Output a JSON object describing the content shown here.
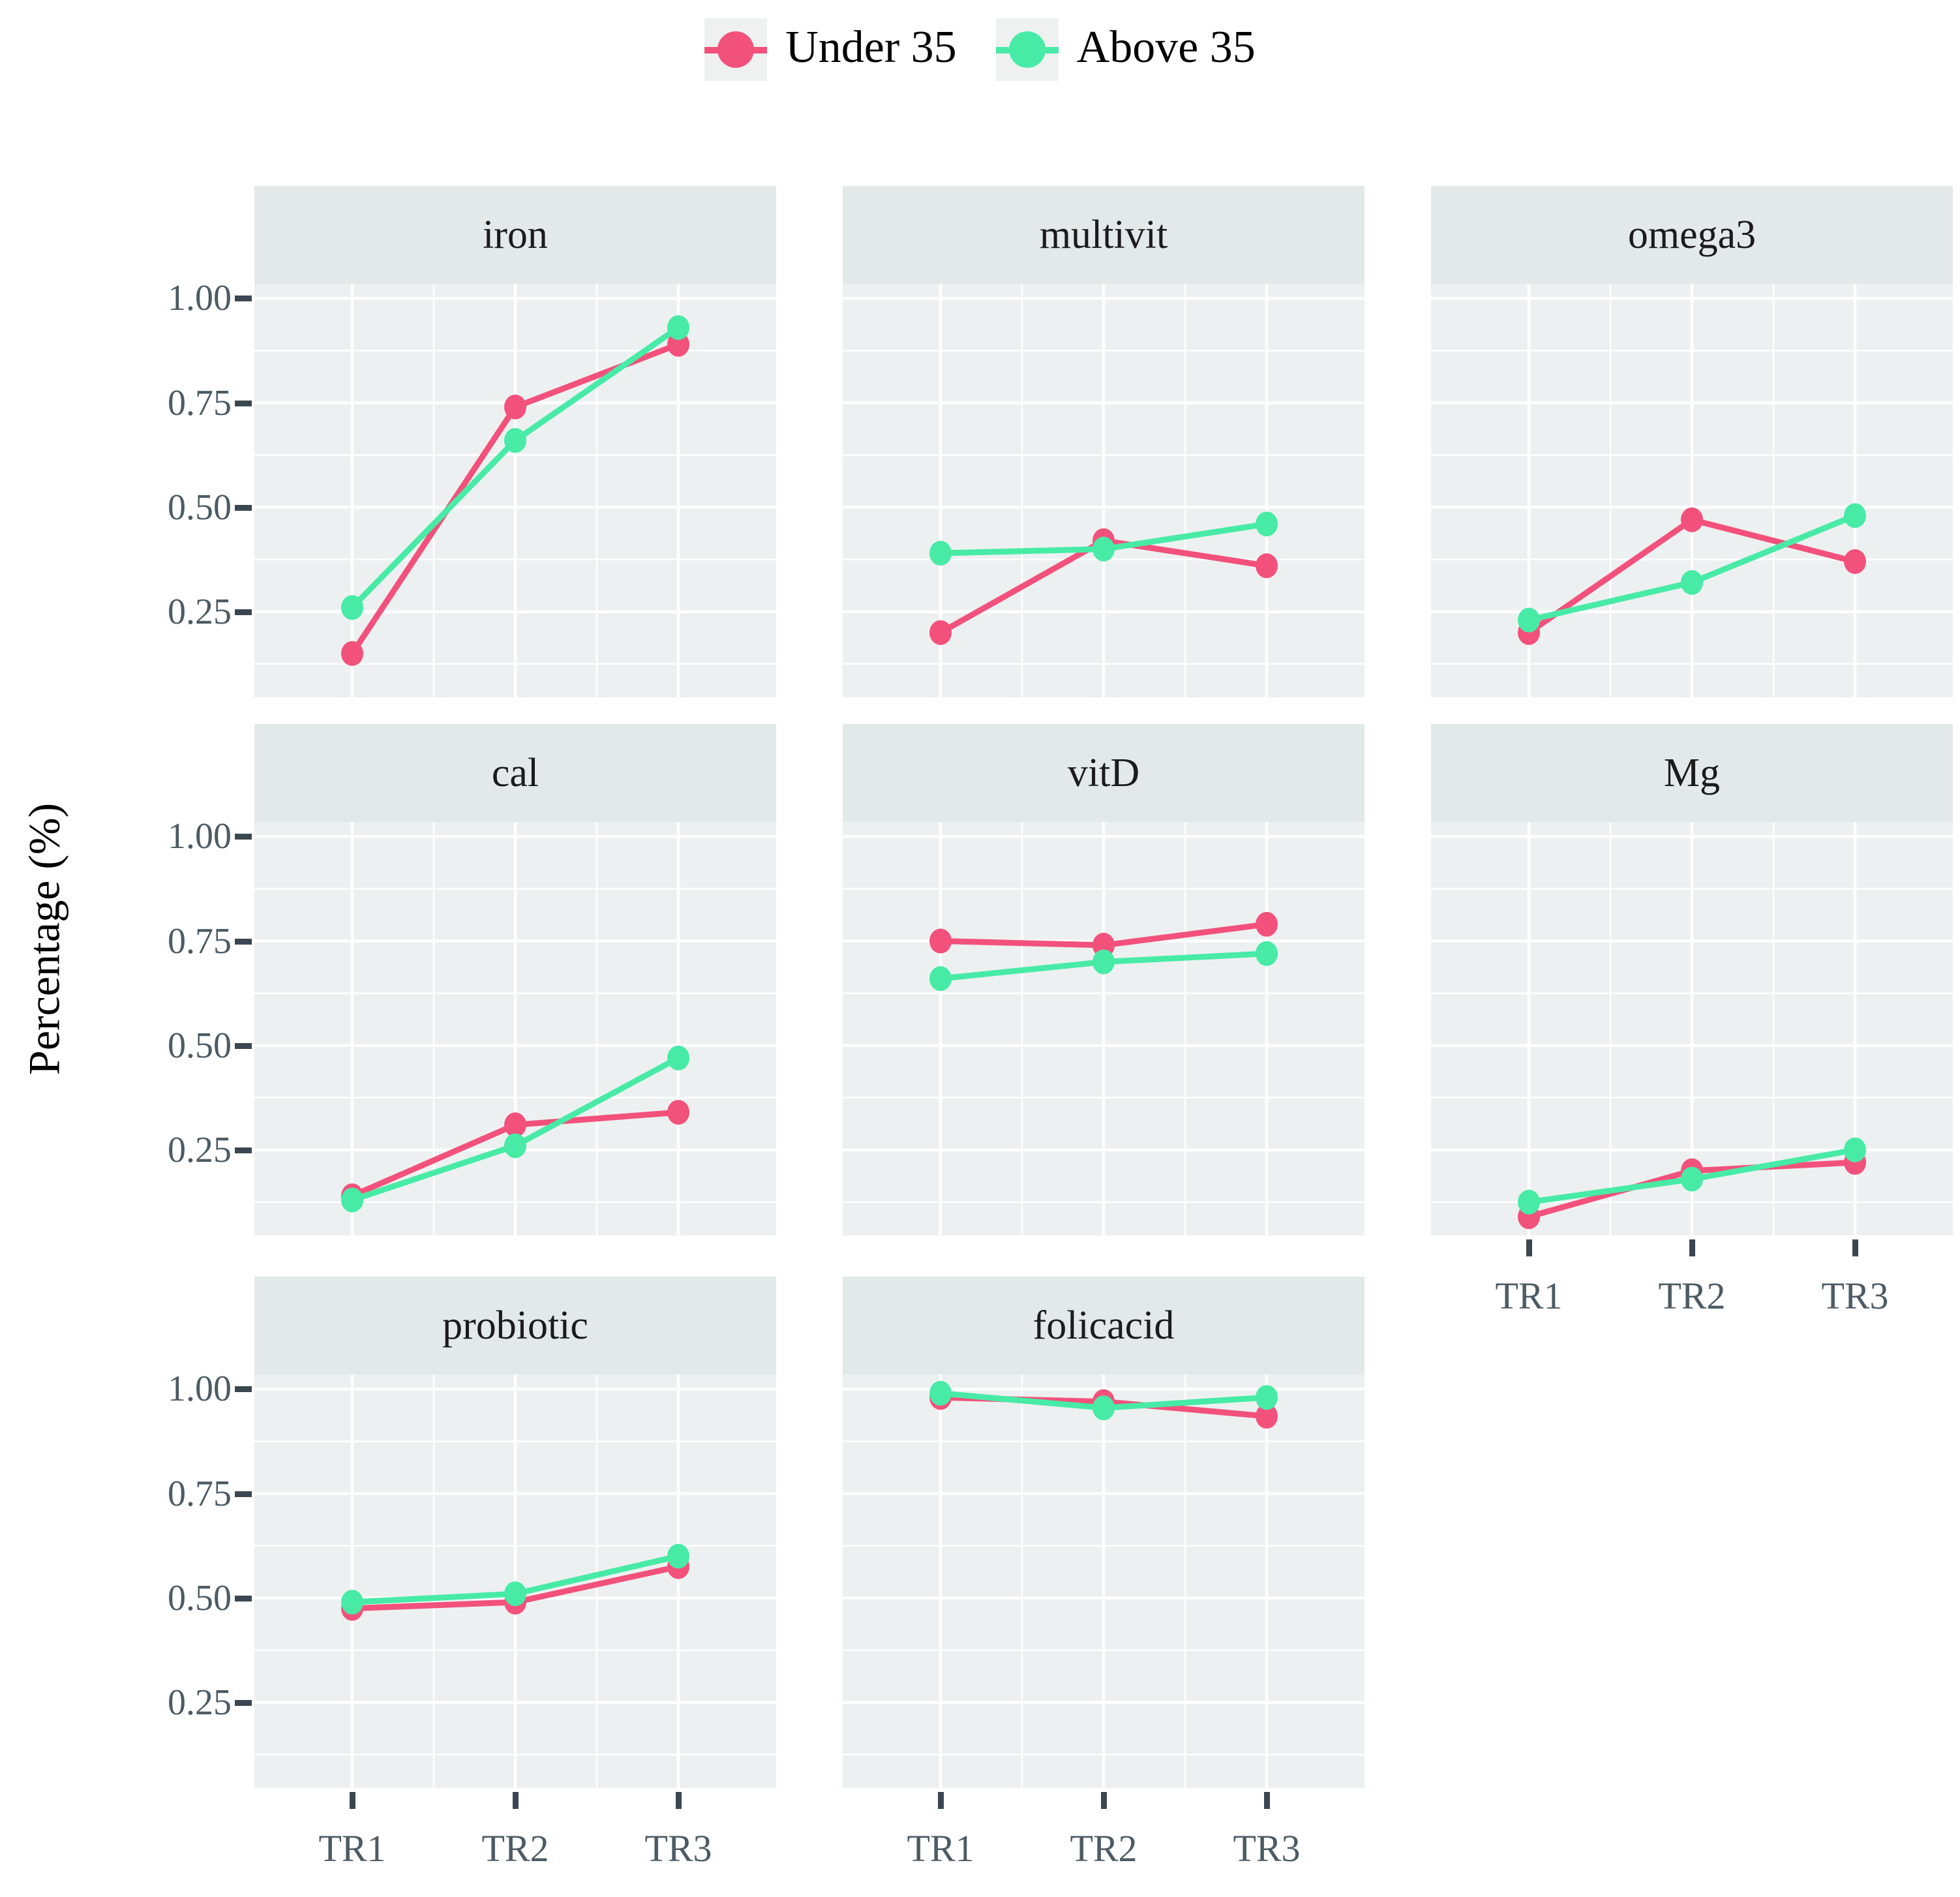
{
  "legend": {
    "items": [
      {
        "label": "Under 35",
        "color": "#F2517B"
      },
      {
        "label": "Above 35",
        "color": "#47EBA6"
      }
    ]
  },
  "axes": {
    "y_title": "Percentage (%)",
    "y_tick_labels": [
      "1.00",
      "0.75",
      "0.50",
      "0.25"
    ],
    "x_tick_labels": [
      "TR1",
      "TR2",
      "TR3"
    ]
  },
  "chart_data": {
    "type": "line",
    "categories": [
      "TR1",
      "TR2",
      "TR3"
    ],
    "ylabel": "Percentage (%)",
    "ylim": [
      0.045,
      1.035
    ],
    "y_major_ticks": [
      0.25,
      0.5,
      0.75,
      1.0
    ],
    "y_minor_ticks": [
      0.125,
      0.375,
      0.625,
      0.875
    ],
    "grid": "on",
    "legend_position": "top",
    "series_colors": {
      "Under 35": "#F2517B",
      "Above 35": "#47EBA6"
    },
    "facets": [
      {
        "title": "iron",
        "col": 0,
        "row": 0,
        "show_x_labels": false,
        "show_y_labels": true,
        "series": [
          {
            "name": "Under 35",
            "values": [
              0.15,
              0.74,
              0.89
            ]
          },
          {
            "name": "Above 35",
            "values": [
              0.26,
              0.66,
              0.93
            ]
          }
        ]
      },
      {
        "title": "multivit",
        "col": 1,
        "row": 0,
        "show_x_labels": false,
        "show_y_labels": false,
        "series": [
          {
            "name": "Under 35",
            "values": [
              0.2,
              0.42,
              0.36
            ]
          },
          {
            "name": "Above 35",
            "values": [
              0.39,
              0.4,
              0.46
            ]
          }
        ]
      },
      {
        "title": "omega3",
        "col": 2,
        "row": 0,
        "show_x_labels": false,
        "show_y_labels": false,
        "series": [
          {
            "name": "Under 35",
            "values": [
              0.2,
              0.47,
              0.37
            ]
          },
          {
            "name": "Above 35",
            "values": [
              0.23,
              0.32,
              0.48
            ]
          }
        ]
      },
      {
        "title": "cal",
        "col": 0,
        "row": 1,
        "show_x_labels": false,
        "show_y_labels": true,
        "series": [
          {
            "name": "Under 35",
            "values": [
              0.14,
              0.31,
              0.34
            ]
          },
          {
            "name": "Above 35",
            "values": [
              0.13,
              0.26,
              0.47
            ]
          }
        ]
      },
      {
        "title": "vitD",
        "col": 1,
        "row": 1,
        "show_x_labels": false,
        "show_y_labels": false,
        "series": [
          {
            "name": "Under 35",
            "values": [
              0.75,
              0.74,
              0.79
            ]
          },
          {
            "name": "Above 35",
            "values": [
              0.66,
              0.7,
              0.72
            ]
          }
        ]
      },
      {
        "title": "Mg",
        "col": 2,
        "row": 1,
        "show_x_labels": true,
        "show_y_labels": false,
        "series": [
          {
            "name": "Under 35",
            "values": [
              0.09,
              0.2,
              0.22
            ]
          },
          {
            "name": "Above 35",
            "values": [
              0.125,
              0.18,
              0.25
            ]
          }
        ]
      },
      {
        "title": "probiotic",
        "col": 0,
        "row": 2,
        "show_x_labels": true,
        "show_y_labels": true,
        "series": [
          {
            "name": "Under 35",
            "values": [
              0.475,
              0.49,
              0.575
            ]
          },
          {
            "name": "Above 35",
            "values": [
              0.49,
              0.51,
              0.6
            ]
          }
        ]
      },
      {
        "title": "folicacid",
        "col": 1,
        "row": 2,
        "show_x_labels": true,
        "show_y_labels": false,
        "series": [
          {
            "name": "Under 35",
            "values": [
              0.98,
              0.97,
              0.935
            ]
          },
          {
            "name": "Above 35",
            "values": [
              0.99,
              0.955,
              0.98
            ]
          }
        ]
      }
    ]
  }
}
